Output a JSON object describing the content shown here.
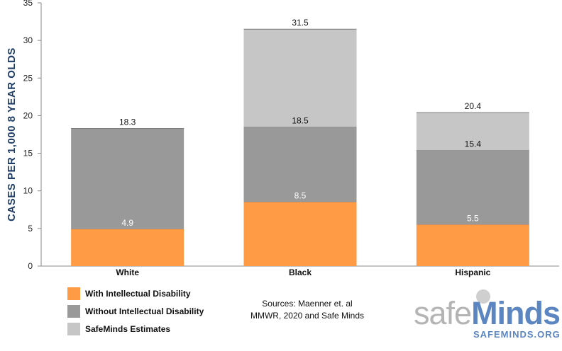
{
  "chart_data": {
    "type": "bar",
    "stacked": true,
    "ylabel": "CASES PER 1,000 8 YEAR OLDS",
    "ylim": [
      0,
      35
    ],
    "yticks": [
      0,
      5,
      10,
      15,
      20,
      25,
      30,
      35
    ],
    "grid": false,
    "categories": [
      "White",
      "Black",
      "Hispanic"
    ],
    "series": [
      {
        "name": "With Intellectual Disability",
        "color": "#ff9a45",
        "values": [
          4.9,
          8.5,
          5.5
        ],
        "labels": [
          "4.9",
          "8.5",
          "5.5"
        ]
      },
      {
        "name": "Without Intellectual Disability",
        "color": "#999999",
        "values": [
          13.4,
          10.0,
          9.9
        ],
        "labels": [
          "18.3",
          "18.5",
          "15.4"
        ]
      },
      {
        "name": "SafeMinds Estimates",
        "color": "#c6c6c6",
        "values": [
          0,
          13.0,
          5.0
        ],
        "labels": [
          "",
          "31.5",
          "20.4"
        ]
      }
    ],
    "legend": "bottom-left"
  },
  "source": {
    "line1": "Sources: Maenner et. al",
    "line2": "MMWR, 2020 and Safe Minds"
  },
  "logo": {
    "word1": "safe",
    "word2": "Minds",
    "url": "SAFEMINDS.ORG"
  }
}
